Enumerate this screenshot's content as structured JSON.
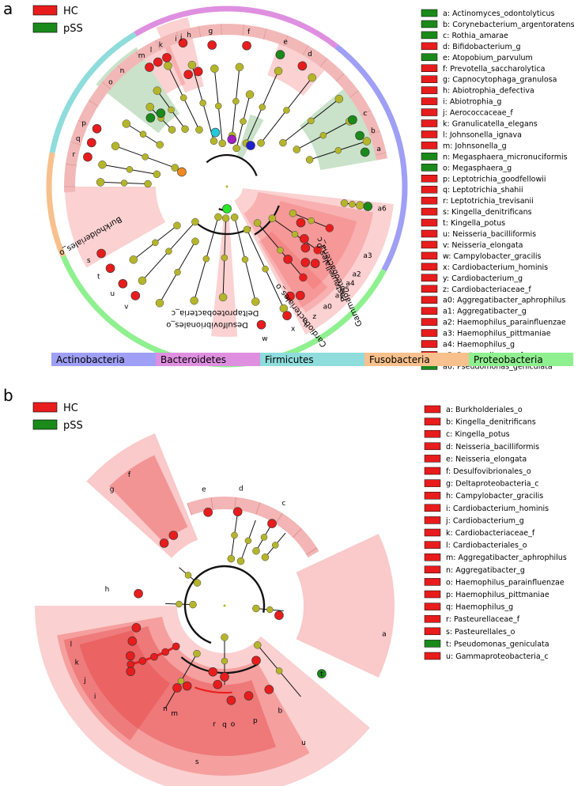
{
  "panels": [
    {
      "id": "a",
      "legend": [
        {
          "group": "HC",
          "color": "#e81c1c"
        },
        {
          "group": "pSS",
          "color": "#1a8a1a"
        }
      ],
      "taxa": [
        {
          "key": "a",
          "name": "Actinomyces_odontolyticus",
          "group": "pSS"
        },
        {
          "key": "b",
          "name": "Corynebacterium_argentoratense",
          "group": "pSS"
        },
        {
          "key": "c",
          "name": "Rothia_amarae",
          "group": "pSS"
        },
        {
          "key": "d",
          "name": "Bifidobacterium_g",
          "group": "HC"
        },
        {
          "key": "e",
          "name": "Atopobium_parvulum",
          "group": "pSS"
        },
        {
          "key": "f",
          "name": "Prevotella_saccharolytica",
          "group": "HC"
        },
        {
          "key": "g",
          "name": "Capnocytophaga_granulosa",
          "group": "HC"
        },
        {
          "key": "h",
          "name": "Abiotrophia_defectiva",
          "group": "HC"
        },
        {
          "key": "i",
          "name": "Abiotrophia_g",
          "group": "HC"
        },
        {
          "key": "j",
          "name": "Aerococcaceae_f",
          "group": "HC"
        },
        {
          "key": "k",
          "name": "Granulicatella_elegans",
          "group": "HC"
        },
        {
          "key": "l",
          "name": "Johnsonella_ignava",
          "group": "HC"
        },
        {
          "key": "m",
          "name": "Johnsonella_g",
          "group": "HC"
        },
        {
          "key": "n",
          "name": "Megasphaera_micronuciformis",
          "group": "pSS"
        },
        {
          "key": "o",
          "name": "Megasphaera_g",
          "group": "pSS"
        },
        {
          "key": "p",
          "name": "Leptotrichia_goodfellowii",
          "group": "HC"
        },
        {
          "key": "q",
          "name": "Leptotrichia_shahii",
          "group": "HC"
        },
        {
          "key": "r",
          "name": "Leptotrichia_trevisanii",
          "group": "HC"
        },
        {
          "key": "s",
          "name": "Kingella_denitrificans",
          "group": "HC"
        },
        {
          "key": "t",
          "name": "Kingella_potus",
          "group": "HC"
        },
        {
          "key": "u",
          "name": "Neisseria_bacilliformis",
          "group": "HC"
        },
        {
          "key": "v",
          "name": "Neisseria_elongata",
          "group": "HC"
        },
        {
          "key": "w",
          "name": "Campylobacter_gracilis",
          "group": "HC"
        },
        {
          "key": "x",
          "name": "Cardiobacterium_hominis",
          "group": "HC"
        },
        {
          "key": "y",
          "name": "Cardiobacterium_g",
          "group": "HC"
        },
        {
          "key": "z",
          "name": "Cardiobacteriaceae_f",
          "group": "HC"
        },
        {
          "key": "a0",
          "name": "Aggregatibacter_aphrophilus",
          "group": "HC"
        },
        {
          "key": "a1",
          "name": "Aggregatibacter_g",
          "group": "HC"
        },
        {
          "key": "a2",
          "name": "Haemophilus_parainfluenzae",
          "group": "HC"
        },
        {
          "key": "a3",
          "name": "Haemophilus_pittmaniae",
          "group": "HC"
        },
        {
          "key": "a4",
          "name": "Haemophilus_g",
          "group": "HC"
        },
        {
          "key": "a5",
          "name": "Pasteurellaceae_f",
          "group": "HC"
        },
        {
          "key": "a6",
          "name": "Pseudomonas_geniculata",
          "group": "pSS"
        }
      ],
      "clade_labels": [
        "Burkholderiales_o",
        "Deltaproteobacteria_c",
        "Desulfovibrionales_o",
        "Cardiobacteriales_o",
        "Gammaproteobacteria_c",
        "Pasteurellales_o"
      ],
      "phyla": [
        {
          "name": "Actinobacteria",
          "color": "#9f9ff5"
        },
        {
          "name": "Bacteroidetes",
          "color": "#df8fe0"
        },
        {
          "name": "Firmicutes",
          "color": "#8fdcdc"
        },
        {
          "name": "Fusobacteria",
          "color": "#f7c08c"
        },
        {
          "name": "Proteobacteria",
          "color": "#8ff08f"
        }
      ]
    },
    {
      "id": "b",
      "legend": [
        {
          "group": "HC",
          "color": "#e81c1c"
        },
        {
          "group": "pSS",
          "color": "#1a8a1a"
        }
      ],
      "taxa": [
        {
          "key": "a",
          "name": "Burkholderiales_o",
          "group": "HC"
        },
        {
          "key": "b",
          "name": "Kingella_denitrificans",
          "group": "HC"
        },
        {
          "key": "c",
          "name": "Kingella_potus",
          "group": "HC"
        },
        {
          "key": "d",
          "name": "Neisseria_bacilliformis",
          "group": "HC"
        },
        {
          "key": "e",
          "name": "Neisseria_elongata",
          "group": "HC"
        },
        {
          "key": "f",
          "name": "Desulfovibrionales_o",
          "group": "HC"
        },
        {
          "key": "g",
          "name": "Deltaproteobacteria_c",
          "group": "HC"
        },
        {
          "key": "h",
          "name": "Campylobacter_gracilis",
          "group": "HC"
        },
        {
          "key": "i",
          "name": "Cardiobacterium_hominis",
          "group": "HC"
        },
        {
          "key": "j",
          "name": "Cardiobacterium_g",
          "group": "HC"
        },
        {
          "key": "k",
          "name": "Cardiobacteriaceae_f",
          "group": "HC"
        },
        {
          "key": "l",
          "name": "Cardiobacteriales_o",
          "group": "HC"
        },
        {
          "key": "m",
          "name": "Aggregatibacter_aphrophilus",
          "group": "HC"
        },
        {
          "key": "n",
          "name": "Aggregatibacter_g",
          "group": "HC"
        },
        {
          "key": "o",
          "name": "Haemophilus_parainfluenzae",
          "group": "HC"
        },
        {
          "key": "p",
          "name": "Haemophilus_pittmaniae",
          "group": "HC"
        },
        {
          "key": "q",
          "name": "Haemophilus_g",
          "group": "HC"
        },
        {
          "key": "r",
          "name": "Pasteurellaceae_f",
          "group": "HC"
        },
        {
          "key": "s",
          "name": "Pasteurellales_o",
          "group": "HC"
        },
        {
          "key": "t",
          "name": "Pseudomonas_geniculata",
          "group": "pSS"
        },
        {
          "key": "u",
          "name": "Gammaproteobacteria_c",
          "group": "HC"
        }
      ]
    }
  ]
}
